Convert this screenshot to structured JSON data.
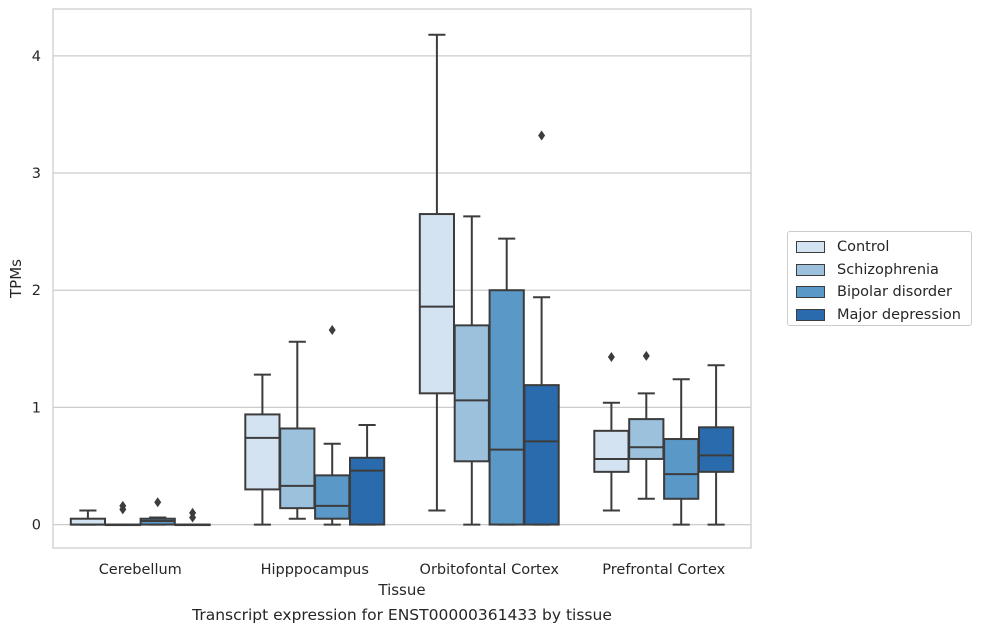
{
  "chart_data": {
    "type": "box",
    "xlabel": "Tissue",
    "ylabel": "TPMs",
    "caption": "Transcript expression for ENST00000361433 by tissue",
    "ylim": [
      -0.2,
      4.4
    ],
    "yticks": [
      0,
      1,
      2,
      3,
      4
    ],
    "grid": true,
    "legend_position": "right",
    "categories": [
      "Cerebellum",
      "Hipppocampus",
      "Orbitofontal Cortex",
      "Prefrontal Cortex"
    ],
    "series": [
      {
        "name": "Control",
        "color": "#d4e3f2",
        "boxes": [
          {
            "whisker_low": 0.0,
            "q1": 0.0,
            "median": 0.0,
            "q3": 0.05,
            "whisker_high": 0.12,
            "outliers": []
          },
          {
            "whisker_low": 0.0,
            "q1": 0.3,
            "median": 0.74,
            "q3": 0.94,
            "whisker_high": 1.28,
            "outliers": []
          },
          {
            "whisker_low": 0.12,
            "q1": 1.12,
            "median": 1.86,
            "q3": 2.65,
            "whisker_high": 4.18,
            "outliers": []
          },
          {
            "whisker_low": 0.12,
            "q1": 0.45,
            "median": 0.56,
            "q3": 0.8,
            "whisker_high": 1.04,
            "outliers": [
              1.43
            ]
          }
        ]
      },
      {
        "name": "Schizophrenia",
        "color": "#9bc1dd",
        "boxes": [
          {
            "whisker_low": 0.0,
            "q1": 0.0,
            "median": 0.0,
            "q3": 0.0,
            "whisker_high": 0.0,
            "outliers": [
              0.13,
              0.16
            ]
          },
          {
            "whisker_low": 0.05,
            "q1": 0.14,
            "median": 0.33,
            "q3": 0.82,
            "whisker_high": 1.56,
            "outliers": []
          },
          {
            "whisker_low": 0.0,
            "q1": 0.54,
            "median": 1.06,
            "q3": 1.7,
            "whisker_high": 2.63,
            "outliers": []
          },
          {
            "whisker_low": 0.22,
            "q1": 0.56,
            "median": 0.66,
            "q3": 0.9,
            "whisker_high": 1.12,
            "outliers": [
              1.44
            ]
          }
        ]
      },
      {
        "name": "Bipolar disorder",
        "color": "#5a98c8",
        "boxes": [
          {
            "whisker_low": 0.0,
            "q1": 0.0,
            "median": 0.03,
            "q3": 0.05,
            "whisker_high": 0.06,
            "outliers": [
              0.19
            ]
          },
          {
            "whisker_low": 0.0,
            "q1": 0.05,
            "median": 0.16,
            "q3": 0.42,
            "whisker_high": 0.69,
            "outliers": [
              1.66
            ]
          },
          {
            "whisker_low": 0.0,
            "q1": 0.0,
            "median": 0.64,
            "q3": 2.0,
            "whisker_high": 2.44,
            "outliers": []
          },
          {
            "whisker_low": 0.0,
            "q1": 0.22,
            "median": 0.43,
            "q3": 0.73,
            "whisker_high": 1.24,
            "outliers": []
          }
        ]
      },
      {
        "name": "Major depression",
        "color": "#2a6bad",
        "boxes": [
          {
            "whisker_low": 0.0,
            "q1": 0.0,
            "median": 0.0,
            "q3": 0.0,
            "whisker_high": 0.0,
            "outliers": [
              0.06,
              0.1
            ]
          },
          {
            "whisker_low": 0.0,
            "q1": 0.0,
            "median": 0.46,
            "q3": 0.57,
            "whisker_high": 0.85,
            "outliers": []
          },
          {
            "whisker_low": 0.0,
            "q1": 0.0,
            "median": 0.71,
            "q3": 1.19,
            "whisker_high": 1.94,
            "outliers": [
              3.32
            ]
          },
          {
            "whisker_low": 0.0,
            "q1": 0.45,
            "median": 0.59,
            "q3": 0.83,
            "whisker_high": 1.36,
            "outliers": []
          }
        ]
      }
    ]
  }
}
